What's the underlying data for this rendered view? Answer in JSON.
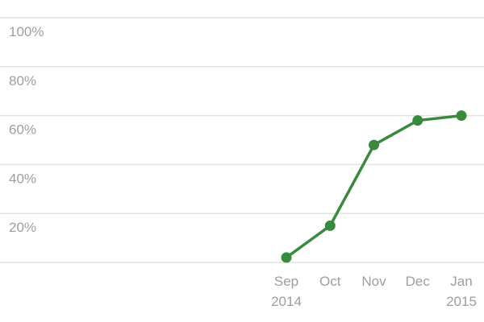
{
  "chart_data": {
    "type": "line",
    "title": "",
    "xlabel": "",
    "ylabel": "",
    "ylim": [
      0,
      100
    ],
    "y_ticks": [
      "100%",
      "80%",
      "60%",
      "40%",
      "20%"
    ],
    "y_tick_values": [
      100,
      80,
      60,
      40,
      20
    ],
    "categories": [
      {
        "month": "Sep",
        "year": "2014"
      },
      {
        "month": "Oct",
        "year": ""
      },
      {
        "month": "Nov",
        "year": ""
      },
      {
        "month": "Dec",
        "year": ""
      },
      {
        "month": "Jan",
        "year": "2015"
      }
    ],
    "series": [
      {
        "color": "#398a3c",
        "values": [
          2,
          15,
          48,
          58,
          60
        ]
      }
    ],
    "grid": true,
    "legend": "none"
  }
}
